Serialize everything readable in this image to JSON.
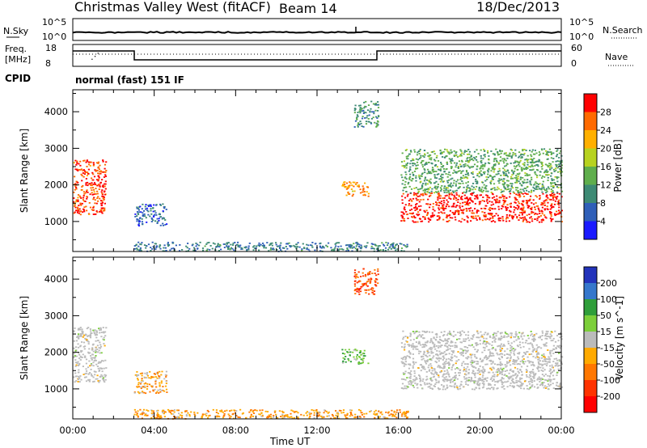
{
  "header": {
    "title": "Christmas Valley West (fitACF)",
    "beam": "Beam 14",
    "date": "18/Dec/2013"
  },
  "noise_panel": {
    "left_label": "N.Sky",
    "left_ticks": [
      "10^5",
      "10^0"
    ],
    "right_ticks": [
      "10^5",
      "10^0"
    ],
    "right_label": "N.Search"
  },
  "freq_panel": {
    "left_label_line1": "Freq.",
    "left_label_line2": "[MHz]",
    "left_ticks": [
      "18",
      "8"
    ],
    "right_ticks": [
      "60",
      "0"
    ],
    "right_label": "Nave",
    "cpid_label": "CPID",
    "cpid_text": "normal (fast) 151 IF"
  },
  "time_axis": {
    "label": "Time UT",
    "ticks": [
      "00:00",
      "04:00",
      "08:00",
      "12:00",
      "16:00",
      "20:00",
      "00:00"
    ]
  },
  "power_panel": {
    "ylabel": "Slant Range [km]",
    "yticks": [
      "1000",
      "2000",
      "3000",
      "4000"
    ],
    "cbar_label": "Power [dB]",
    "cbar_ticks": [
      "4",
      "8",
      "12",
      "16",
      "20",
      "24",
      "28"
    ]
  },
  "velocity_panel": {
    "ylabel": "Slant Range [km]",
    "yticks": [
      "1000",
      "2000",
      "3000",
      "4000"
    ],
    "cbar_label": "Velocity [m s^-1]",
    "cbar_ticks": [
      "200",
      "100",
      "50",
      "15",
      "-15",
      "-50",
      "-100",
      "-200"
    ]
  },
  "colors": {
    "power_scale": [
      "#1a1aff",
      "#2f5fb8",
      "#3d8a74",
      "#5fae4c",
      "#b7d21f",
      "#ffb000",
      "#ff6a00",
      "#ff0000"
    ],
    "velocity_scale": [
      "#2233bb",
      "#3577cc",
      "#2f9e3a",
      "#7ccf3a",
      "#bbbbbb",
      "#ffaa00",
      "#ff7700",
      "#ff3300",
      "#ff0000"
    ],
    "ground_scatter": "#bbbbbb"
  },
  "chart_data": [
    {
      "type": "heatmap",
      "title": "Power",
      "xlabel": "Time UT",
      "ylabel": "Slant Range [km]",
      "xlim_hours": [
        0,
        24
      ],
      "ylim_km": [
        180,
        4600
      ],
      "colorbar": {
        "label": "Power [dB]",
        "range": [
          0,
          30
        ]
      },
      "regions": [
        {
          "name": "morning-echo-band",
          "t": [
            0.0,
            1.6
          ],
          "range_km": [
            1200,
            2700
          ],
          "power_db": 26
        },
        {
          "name": "morning-diffuse",
          "t": [
            3.0,
            4.6
          ],
          "range_km": [
            900,
            1500
          ],
          "power_db": 6
        },
        {
          "name": "near-range-band",
          "t": [
            3.0,
            16.5
          ],
          "range_km": [
            200,
            450
          ],
          "power_db": 8
        },
        {
          "name": "noon-patch",
          "t": [
            13.2,
            14.5
          ],
          "range_km": [
            1700,
            2100
          ],
          "power_db": 22
        },
        {
          "name": "noon-high-patch",
          "t": [
            13.8,
            15.0
          ],
          "range_km": [
            3600,
            4300
          ],
          "power_db": 10
        },
        {
          "name": "evening-strong-band",
          "t": [
            16.1,
            24.0
          ],
          "range_km": [
            1000,
            1800
          ],
          "power_db": 28
        },
        {
          "name": "evening-upper-band",
          "t": [
            16.1,
            24.0
          ],
          "range_km": [
            1800,
            3000
          ],
          "power_db": 12
        }
      ]
    },
    {
      "type": "heatmap",
      "title": "Velocity",
      "xlabel": "Time UT",
      "ylabel": "Slant Range [km]",
      "xlim_hours": [
        0,
        24
      ],
      "ylim_km": [
        180,
        4600
      ],
      "colorbar": {
        "label": "Velocity [m s^-1]",
        "range": [
          -200,
          200
        ]
      },
      "regions": [
        {
          "name": "morning-ground-scatter",
          "t": [
            0.0,
            1.6
          ],
          "range_km": [
            1200,
            2700
          ],
          "velocity": 0
        },
        {
          "name": "morning-diffuse",
          "t": [
            3.0,
            4.6
          ],
          "range_km": [
            900,
            1500
          ],
          "velocity": -50
        },
        {
          "name": "near-range-band",
          "t": [
            3.0,
            16.5
          ],
          "range_km": [
            200,
            450
          ],
          "velocity": -60
        },
        {
          "name": "noon-patch",
          "t": [
            13.2,
            14.5
          ],
          "range_km": [
            1700,
            2100
          ],
          "velocity": 60
        },
        {
          "name": "noon-high-patch",
          "t": [
            13.8,
            15.0
          ],
          "range_km": [
            3600,
            4300
          ],
          "velocity": -120
        },
        {
          "name": "evening-ground-scatter",
          "t": [
            16.1,
            24.0
          ],
          "range_km": [
            1000,
            2600
          ],
          "velocity": 0
        }
      ]
    }
  ]
}
